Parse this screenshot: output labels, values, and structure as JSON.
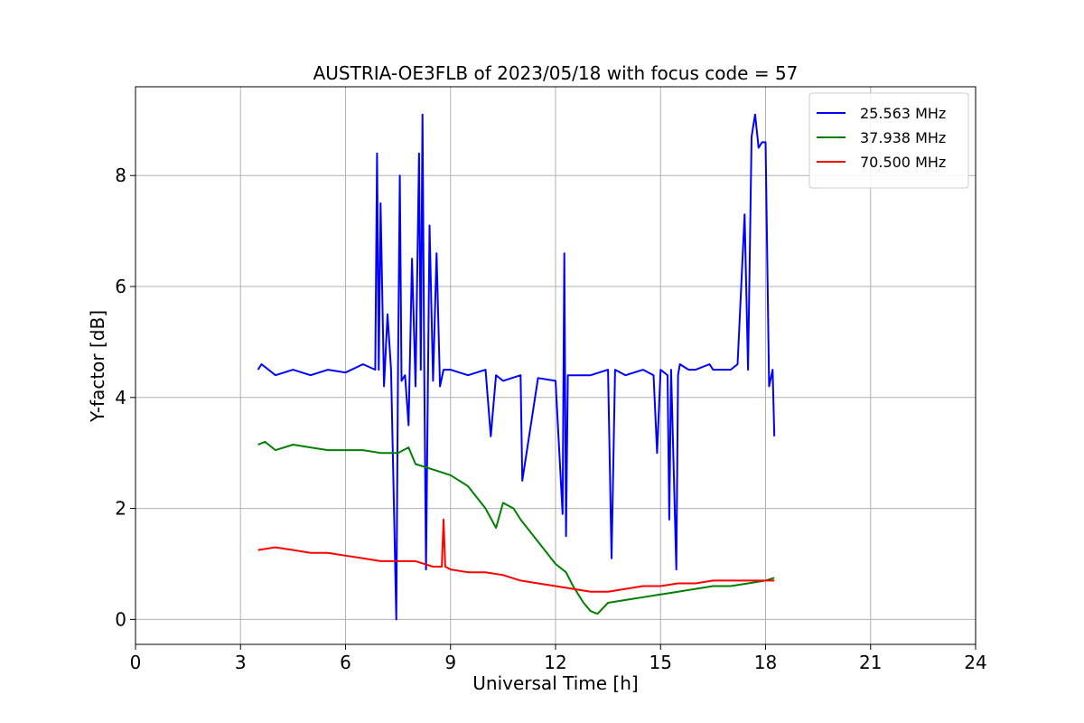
{
  "chart_data": {
    "type": "line",
    "title": "AUSTRIA-OE3FLB of 2023/05/18 with focus code = 57",
    "xlabel": "Universal Time [h]",
    "ylabel": "Y-factor [dB]",
    "xlim": [
      0,
      24
    ],
    "ylim": [
      -0.45,
      9.6
    ],
    "xticks": [
      0,
      3,
      6,
      9,
      12,
      15,
      18,
      21,
      24
    ],
    "xtick_labels": [
      "0",
      "3",
      "6",
      "9",
      "12",
      "15",
      "18",
      "21",
      "24"
    ],
    "yticks": [
      0,
      2,
      4,
      6,
      8
    ],
    "ytick_labels": [
      "0",
      "2",
      "4",
      "6",
      "8"
    ],
    "grid": true,
    "legend_position": "top-right",
    "series": [
      {
        "name": "25.563 MHz",
        "color": "#0000ff",
        "x": [
          3.5,
          3.6,
          4.0,
          4.5,
          5.0,
          5.5,
          6.0,
          6.5,
          6.85,
          6.9,
          6.95,
          7.0,
          7.1,
          7.2,
          7.3,
          7.4,
          7.45,
          7.5,
          7.55,
          7.6,
          7.7,
          7.8,
          7.9,
          8.0,
          8.1,
          8.15,
          8.2,
          8.25,
          8.3,
          8.4,
          8.5,
          8.6,
          8.7,
          8.8,
          9.0,
          9.5,
          10.0,
          10.15,
          10.3,
          10.5,
          11.0,
          11.05,
          11.5,
          12.0,
          12.2,
          12.25,
          12.3,
          12.35,
          12.5,
          13.0,
          13.5,
          13.6,
          13.7,
          14.0,
          14.5,
          14.8,
          14.9,
          15.0,
          15.2,
          15.25,
          15.3,
          15.45,
          15.5,
          15.55,
          15.8,
          16.0,
          16.4,
          16.5,
          17.0,
          17.2,
          17.4,
          17.5,
          17.6,
          17.7,
          17.8,
          17.9,
          18.0,
          18.1,
          18.2,
          18.25
        ],
        "y": [
          4.5,
          4.6,
          4.4,
          4.5,
          4.4,
          4.5,
          4.45,
          4.6,
          4.5,
          8.4,
          4.5,
          7.5,
          4.2,
          5.5,
          4.5,
          1.5,
          0.0,
          4.5,
          8.0,
          4.3,
          4.4,
          3.5,
          6.5,
          4.2,
          8.4,
          4.5,
          9.1,
          4.4,
          0.9,
          7.1,
          4.3,
          6.6,
          4.2,
          4.5,
          4.5,
          4.4,
          4.5,
          3.3,
          4.4,
          4.3,
          4.4,
          2.5,
          4.35,
          4.3,
          1.9,
          6.6,
          1.5,
          4.4,
          4.4,
          4.4,
          4.5,
          1.1,
          4.5,
          4.4,
          4.5,
          4.4,
          3.0,
          4.5,
          4.4,
          1.8,
          4.5,
          0.9,
          4.4,
          4.6,
          4.5,
          4.5,
          4.6,
          4.5,
          4.5,
          4.6,
          7.3,
          4.5,
          8.7,
          9.1,
          8.5,
          8.6,
          8.6,
          4.2,
          4.5,
          3.3
        ]
      },
      {
        "name": "37.938 MHz",
        "color": "#008000",
        "x": [
          3.5,
          3.7,
          4.0,
          4.5,
          5.0,
          5.5,
          6.0,
          6.5,
          7.0,
          7.5,
          7.8,
          8.0,
          8.5,
          9.0,
          9.5,
          10.0,
          10.3,
          10.5,
          10.8,
          11.0,
          11.5,
          12.0,
          12.3,
          12.5,
          12.8,
          13.0,
          13.2,
          13.5,
          14.0,
          14.5,
          15.0,
          15.5,
          16.0,
          16.5,
          17.0,
          17.5,
          18.0,
          18.25
        ],
        "y": [
          3.15,
          3.2,
          3.05,
          3.15,
          3.1,
          3.05,
          3.05,
          3.05,
          3.0,
          3.0,
          3.1,
          2.8,
          2.7,
          2.6,
          2.4,
          2.0,
          1.65,
          2.1,
          2.0,
          1.8,
          1.4,
          1.0,
          0.85,
          0.6,
          0.3,
          0.15,
          0.1,
          0.3,
          0.35,
          0.4,
          0.45,
          0.5,
          0.55,
          0.6,
          0.6,
          0.65,
          0.7,
          0.75
        ]
      },
      {
        "name": "70.500 MHz",
        "color": "#ff0000",
        "x": [
          3.5,
          4.0,
          4.5,
          5.0,
          5.5,
          6.0,
          6.5,
          7.0,
          7.5,
          8.0,
          8.5,
          8.75,
          8.8,
          8.85,
          9.0,
          9.5,
          10.0,
          10.5,
          11.0,
          11.5,
          12.0,
          12.5,
          13.0,
          13.5,
          14.0,
          14.5,
          15.0,
          15.5,
          16.0,
          16.5,
          17.0,
          17.5,
          18.0,
          18.25
        ],
        "y": [
          1.25,
          1.3,
          1.25,
          1.2,
          1.2,
          1.15,
          1.1,
          1.05,
          1.05,
          1.05,
          0.95,
          0.95,
          1.8,
          0.95,
          0.9,
          0.85,
          0.85,
          0.8,
          0.7,
          0.65,
          0.6,
          0.55,
          0.5,
          0.5,
          0.55,
          0.6,
          0.6,
          0.65,
          0.65,
          0.7,
          0.7,
          0.7,
          0.7,
          0.7
        ]
      }
    ]
  }
}
